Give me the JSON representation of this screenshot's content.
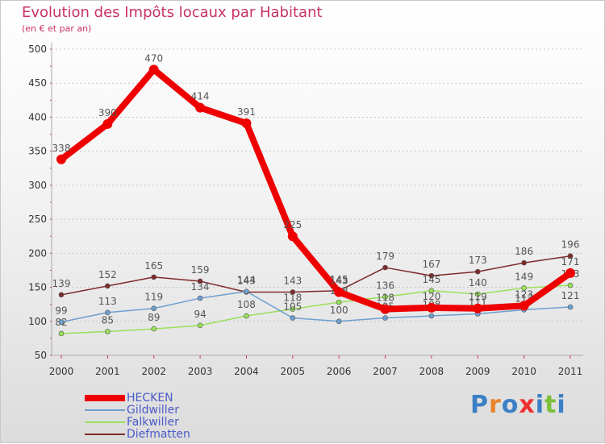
{
  "header": {
    "title": "Evolution des Impôts locaux par Habitant",
    "subtitle": "(en € et par an)"
  },
  "colors": {
    "title": "#c83264",
    "legend_text": "#4a5ac8",
    "axis_text": "#333333",
    "grid": "#c8c8c8"
  },
  "chart_data": {
    "type": "line",
    "title": "Evolution des Impôts locaux par Habitant",
    "subtitle": "(en € et par an)",
    "xlabel": "",
    "ylabel": "",
    "ylim": [
      50,
      500
    ],
    "yticks": [
      50,
      100,
      150,
      200,
      250,
      300,
      350,
      400,
      450,
      500
    ],
    "grid": "horizontal dashed",
    "legend_position": "bottom-left",
    "x": [
      "2000",
      "2001",
      "2002",
      "2003",
      "2004",
      "2005",
      "2006",
      "2007",
      "2008",
      "2009",
      "2010",
      "2011"
    ],
    "series": [
      {
        "name": "Diefmatten",
        "color": "#7f2a2a",
        "width": 1.5,
        "marker": 3,
        "values": [
          139,
          152,
          165,
          159,
          143,
          143,
          145,
          179,
          167,
          173,
          186,
          196
        ]
      },
      {
        "name": "Falkwiller",
        "color": "#99e05a",
        "width": 1.5,
        "marker": 3,
        "values": [
          82,
          85,
          89,
          94,
          108,
          118,
          128,
          136,
          145,
          140,
          149,
          153
        ]
      },
      {
        "name": "Gildwiller",
        "color": "#6d9fd0",
        "width": 1.5,
        "marker": 3,
        "values": [
          99,
          113,
          119,
          134,
          144,
          105,
          100,
          105,
          108,
          111,
          117,
          121
        ]
      },
      {
        "name": "HECKEN",
        "color": "#ee0000",
        "width": 8,
        "marker": 6,
        "values": [
          338,
          390,
          470,
          414,
          391,
          225,
          143,
          118,
          120,
          119,
          123,
          171
        ]
      }
    ],
    "legend": [
      "HECKEN",
      "Gildwiller",
      "Falkwiller",
      "Diefmatten"
    ]
  },
  "logo": {
    "letters": [
      "P",
      "r",
      "o",
      "x",
      "i",
      "t",
      "i"
    ],
    "colors": [
      "#3b7fc4",
      "#e8842a",
      "#3b7fc4",
      "#ee3030",
      "#3b7fc4",
      "#7cbf3a",
      "#3b7fc4"
    ]
  }
}
